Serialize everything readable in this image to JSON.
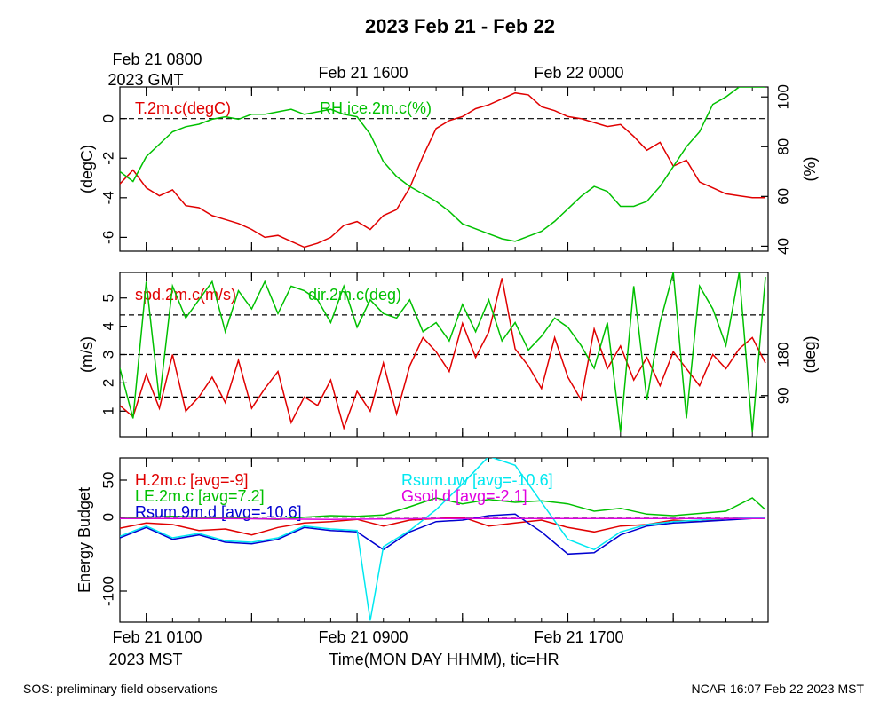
{
  "title": "2023 Feb 21 - Feb 22",
  "top_axis": {
    "start_line1": "Feb 21 0800",
    "start_line2": "2023 GMT",
    "labels": [
      "Feb 21 1600",
      "Feb 22 0000"
    ]
  },
  "bottom_axis": {
    "start_line1": "Feb 21 0100",
    "start_line2": "2023 MST",
    "labels": [
      "Feb 21 0900",
      "Feb 21 1700"
    ],
    "xlabel": "Time(MON DAY HHMM), tic=HR"
  },
  "footer": {
    "left": "SOS: preliminary field observations",
    "right": "NCAR 16:07 Feb 22 2023 MST"
  },
  "colors": {
    "red": "#e00000",
    "green": "#00c000",
    "blue": "#0000d0",
    "cyan": "#00e8f0",
    "magenta": "#e000e0",
    "axis": "#000000"
  },
  "chart_data": [
    {
      "type": "line",
      "panel": "temperature-humidity",
      "x_unit": "hours since Feb 21 0000 MST",
      "xlim": [
        0.0,
        24.6
      ],
      "ylabel": "(degC)",
      "ylim": [
        -6.7,
        1.6
      ],
      "yticks": [
        "0",
        "-2",
        "-4",
        "-6"
      ],
      "ylabel_right": "(%)",
      "ylim_right": [
        38,
        104
      ],
      "yticks_right": [
        "100",
        "80",
        "60",
        "40"
      ],
      "reference_lines": [
        0
      ],
      "series": [
        {
          "name": "T.2m.c(degC)",
          "label": "T.2m.c(degC)",
          "color": "red",
          "axis": "left",
          "x": [
            0.0,
            0.5,
            1.0,
            1.5,
            2.0,
            2.5,
            3.0,
            3.5,
            4.0,
            4.5,
            5.0,
            5.5,
            6.0,
            6.5,
            7.0,
            7.5,
            8.0,
            8.5,
            9.0,
            9.5,
            10.0,
            10.5,
            11.0,
            11.5,
            12.0,
            12.5,
            13.0,
            13.5,
            14.0,
            14.5,
            15.0,
            15.5,
            16.0,
            16.5,
            17.0,
            17.5,
            18.0,
            18.5,
            19.0,
            19.5,
            20.0,
            20.5,
            21.0,
            21.5,
            22.0,
            22.5,
            23.0,
            23.5,
            24.0,
            24.5
          ],
          "y": [
            -3.3,
            -2.6,
            -3.5,
            -3.9,
            -3.6,
            -4.4,
            -4.5,
            -4.9,
            -5.1,
            -5.3,
            -5.6,
            -6.0,
            -5.9,
            -6.2,
            -6.5,
            -6.3,
            -6.0,
            -5.4,
            -5.2,
            -5.6,
            -4.9,
            -4.6,
            -3.5,
            -1.9,
            -0.5,
            -0.1,
            0.1,
            0.5,
            0.7,
            1.0,
            1.3,
            1.2,
            0.6,
            0.4,
            0.1,
            0.0,
            -0.2,
            -0.4,
            -0.3,
            -0.9,
            -1.6,
            -1.2,
            -2.4,
            -2.1,
            -3.2,
            -3.5,
            -3.8,
            -3.9,
            -4.0,
            -4.0
          ]
        },
        {
          "name": "RH.ice.2m.c(%)",
          "label": "RH.ice.2m.c(%)",
          "color": "green",
          "axis": "right",
          "x": [
            0.0,
            0.5,
            1.0,
            1.5,
            2.0,
            2.5,
            3.0,
            3.5,
            4.0,
            4.5,
            5.0,
            5.5,
            6.0,
            6.5,
            7.0,
            7.5,
            8.0,
            8.5,
            9.0,
            9.5,
            10.0,
            10.5,
            11.0,
            11.5,
            12.0,
            12.5,
            13.0,
            13.5,
            14.0,
            14.5,
            15.0,
            15.5,
            16.0,
            16.5,
            17.0,
            17.5,
            18.0,
            18.5,
            19.0,
            19.5,
            20.0,
            20.5,
            21.0,
            21.5,
            22.0,
            22.5,
            23.0,
            23.5,
            24.0,
            24.5
          ],
          "y": [
            70,
            66,
            76,
            81,
            86,
            88,
            89,
            91,
            92,
            91,
            93,
            93,
            94,
            95,
            93,
            94,
            95,
            93,
            92,
            85,
            74,
            68,
            64,
            61,
            58,
            54,
            49,
            47,
            45,
            43,
            42,
            44,
            46,
            50,
            55,
            60,
            64,
            62,
            56,
            56,
            58,
            64,
            72,
            80,
            86,
            97,
            100,
            104,
            104,
            104
          ]
        }
      ]
    },
    {
      "type": "line",
      "panel": "wind",
      "x_unit": "hours since Feb 21 0000 MST",
      "xlim": [
        0.0,
        24.6
      ],
      "ylabel": "(m/s)",
      "ylim": [
        0.1,
        5.9
      ],
      "yticks": [
        "5",
        "4",
        "3",
        "2",
        "1"
      ],
      "ylabel_right": "(deg)",
      "ylim_right": [
        0,
        360
      ],
      "yticks_right": [
        "180",
        "90"
      ],
      "reference_lines": [
        1.5,
        3.0,
        4.4
      ],
      "series": [
        {
          "name": "spd.2m.c(m/s)",
          "label": "spd.2m.c(m/s)",
          "color": "red",
          "axis": "left",
          "x": [
            0.0,
            0.5,
            1.0,
            1.5,
            2.0,
            2.5,
            3.0,
            3.5,
            4.0,
            4.5,
            5.0,
            5.5,
            6.0,
            6.5,
            7.0,
            7.5,
            8.0,
            8.5,
            9.0,
            9.5,
            10.0,
            10.5,
            11.0,
            11.5,
            12.0,
            12.5,
            13.0,
            13.5,
            14.0,
            14.5,
            15.0,
            15.5,
            16.0,
            16.5,
            17.0,
            17.5,
            18.0,
            18.5,
            19.0,
            19.5,
            20.0,
            20.5,
            21.0,
            21.5,
            22.0,
            22.5,
            23.0,
            23.5,
            24.0,
            24.5
          ],
          "y": [
            1.2,
            0.8,
            2.3,
            1.1,
            3.0,
            1.0,
            1.5,
            2.2,
            1.3,
            2.8,
            1.1,
            1.8,
            2.4,
            0.6,
            1.5,
            1.2,
            2.1,
            0.4,
            1.7,
            1.0,
            2.7,
            0.9,
            2.6,
            3.6,
            3.1,
            2.4,
            4.1,
            2.9,
            3.8,
            5.7,
            3.2,
            2.6,
            1.8,
            3.6,
            2.2,
            1.4,
            3.9,
            2.5,
            3.3,
            2.1,
            2.9,
            1.9,
            3.1,
            2.5,
            1.9,
            3.0,
            2.5,
            3.2,
            3.6,
            2.7
          ]
        },
        {
          "name": "dir.2m.c(deg)",
          "label": "dir.2m.c(deg)",
          "color": "green",
          "axis": "right",
          "x": [
            0.0,
            0.5,
            1.0,
            1.5,
            2.0,
            2.5,
            3.0,
            3.5,
            4.0,
            4.5,
            5.0,
            5.5,
            6.0,
            6.5,
            7.0,
            7.5,
            8.0,
            8.5,
            9.0,
            9.5,
            10.0,
            10.5,
            11.0,
            11.5,
            12.0,
            12.5,
            13.0,
            13.5,
            14.0,
            14.5,
            15.0,
            15.5,
            16.0,
            16.5,
            17.0,
            17.5,
            18.0,
            18.5,
            19.0,
            19.5,
            20.0,
            20.5,
            21.0,
            21.5,
            22.0,
            22.5,
            23.0,
            23.5,
            24.0,
            24.5
          ],
          "y": [
            150,
            40,
            340,
            80,
            330,
            260,
            300,
            340,
            230,
            320,
            280,
            340,
            270,
            330,
            320,
            300,
            250,
            330,
            240,
            300,
            270,
            260,
            300,
            230,
            250,
            210,
            290,
            230,
            300,
            210,
            250,
            190,
            220,
            260,
            240,
            200,
            150,
            250,
            10,
            330,
            80,
            250,
            360,
            40,
            330,
            280,
            200,
            360,
            10,
            350
          ]
        }
      ]
    },
    {
      "type": "line",
      "panel": "energy-budget",
      "x_unit": "hours since Feb 21 0000 MST",
      "xlim": [
        0.0,
        24.6
      ],
      "ylabel": "Energy Budget",
      "ylim": [
        -142,
        80
      ],
      "yticks": [
        "50",
        "0",
        "-100"
      ],
      "reference_lines": [
        0
      ],
      "series": [
        {
          "name": "H.2m.c",
          "label": "H.2m.c [avg=-9]",
          "color": "red",
          "x": [
            0,
            1,
            2,
            3,
            4,
            5,
            6,
            7,
            8,
            9,
            10,
            11,
            12,
            13,
            14,
            15,
            16,
            17,
            18,
            19,
            20,
            21,
            22,
            23,
            24,
            24.5
          ],
          "y": [
            -15,
            -8,
            -10,
            -18,
            -16,
            -24,
            -14,
            -8,
            -6,
            -3,
            -12,
            -4,
            -2,
            0,
            -12,
            -8,
            -4,
            -14,
            -20,
            -12,
            -10,
            -4,
            -6,
            -2,
            -1,
            0
          ]
        },
        {
          "name": "LE.2m.c",
          "label": "LE.2m.c [avg=7.2]",
          "color": "green",
          "x": [
            0,
            1,
            2,
            3,
            4,
            5,
            6,
            7,
            8,
            9,
            10,
            11,
            12,
            13,
            14,
            15,
            16,
            17,
            18,
            19,
            20,
            21,
            22,
            23,
            24,
            24.5
          ],
          "y": [
            -2,
            0,
            1,
            0,
            0,
            -2,
            -3,
            0,
            2,
            1,
            3,
            14,
            26,
            18,
            24,
            20,
            22,
            18,
            8,
            12,
            4,
            2,
            5,
            8,
            26,
            10
          ]
        },
        {
          "name": "Rsum.9m.d",
          "label": "Rsum.9m.d [avg=-10.6]",
          "color": "blue",
          "x": [
            0,
            1,
            2,
            3,
            4,
            5,
            6,
            7,
            8,
            9,
            10,
            11,
            12,
            13,
            14,
            15,
            16,
            17,
            18,
            19,
            20,
            21,
            22,
            23,
            24,
            24.5
          ],
          "y": [
            -28,
            -14,
            -30,
            -24,
            -34,
            -36,
            -30,
            -14,
            -18,
            -20,
            -44,
            -20,
            -6,
            -4,
            2,
            4,
            -20,
            -50,
            -48,
            -24,
            -12,
            -8,
            -6,
            -4,
            -2,
            0
          ]
        },
        {
          "name": "Rsum.uw",
          "label": "Rsum.uw [avg=-10.6]",
          "color": "cyan",
          "x": [
            0,
            1,
            2,
            3,
            4,
            5,
            6,
            7,
            8,
            9,
            9.5,
            10,
            11,
            12,
            13,
            14,
            15,
            16,
            17,
            18,
            19,
            20,
            21,
            22,
            23,
            24,
            24.5
          ],
          "y": [
            -26,
            -12,
            -28,
            -22,
            -32,
            -34,
            -28,
            -12,
            -16,
            -18,
            -140,
            -40,
            -18,
            10,
            45,
            82,
            70,
            20,
            -30,
            -44,
            -20,
            -10,
            -6,
            -4,
            -2,
            -1,
            0
          ]
        },
        {
          "name": "Gsoil.d",
          "label": "Gsoil.d [avg=-2.1]",
          "color": "magenta",
          "x": [
            0,
            4,
            8,
            12,
            16,
            20,
            24.5
          ],
          "y": [
            -2,
            -2,
            -3,
            -2,
            -2,
            -2,
            -2
          ]
        }
      ]
    }
  ]
}
